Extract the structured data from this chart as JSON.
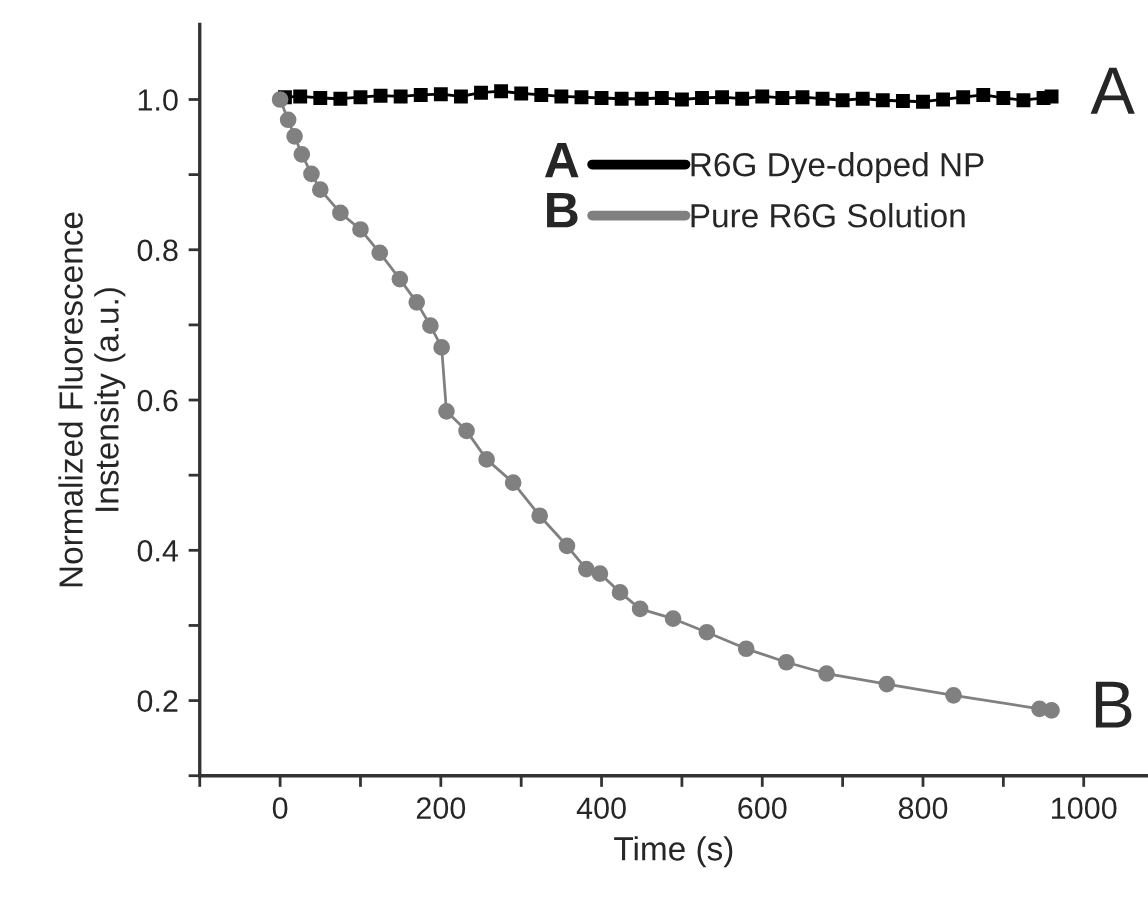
{
  "chart_data": {
    "type": "line",
    "xlabel": "Time (s)",
    "ylabel": "Normalized Fluorescence\nInstensity (a.u.)",
    "xlim": [
      -100,
      1080
    ],
    "ylim": [
      0.1,
      1.1
    ],
    "xticks": [
      {
        "value": -100,
        "label": null
      },
      0,
      {
        "value": 100,
        "label": null
      },
      200,
      {
        "value": 300,
        "label": null
      },
      400,
      {
        "value": 500,
        "label": null
      },
      600,
      {
        "value": 700,
        "label": null
      },
      800,
      {
        "value": 900,
        "label": null
      },
      1000
    ],
    "yticks": [
      {
        "value": 0.1,
        "label": null
      },
      0.2,
      {
        "value": 0.3,
        "label": null
      },
      0.4,
      {
        "value": 0.5,
        "label": null
      },
      0.6,
      {
        "value": 0.7,
        "label": null
      },
      0.8,
      {
        "value": 0.9,
        "label": null
      },
      {
        "value": 1.0,
        "label": "1.0"
      }
    ],
    "grid": false,
    "legend": "top right",
    "line_style": "solid",
    "series": [
      {
        "name": "R6G Dye-doped NP",
        "color": "#000000",
        "marker": "square",
        "x": [
          6,
          25,
          50,
          75,
          100,
          125,
          150,
          175,
          200,
          225,
          250,
          275,
          300,
          325,
          350,
          375,
          400,
          425,
          450,
          475,
          500,
          525,
          550,
          575,
          600,
          625,
          650,
          675,
          700,
          725,
          750,
          775,
          800,
          825,
          850,
          875,
          900,
          925,
          950,
          960
        ],
        "values": [
          1.003,
          1.004,
          1.002,
          1.001,
          1.003,
          1.005,
          1.004,
          1.006,
          1.007,
          1.004,
          1.009,
          1.011,
          1.008,
          1.006,
          1.004,
          1.003,
          1.002,
          1.001,
          1.001,
          1.002,
          1.0,
          1.002,
          1.003,
          1.001,
          1.004,
          1.002,
          1.003,
          1.001,
          0.999,
          1.001,
          0.999,
          0.998,
          0.997,
          1.0,
          1.003,
          1.006,
          1.002,
          0.999,
          1.002,
          1.004
        ]
      },
      {
        "name": "Pure R6G Solution",
        "color": "#808080",
        "marker": "circle",
        "x": [
          0,
          10,
          18,
          27,
          39,
          50,
          75,
          100,
          124,
          149,
          170,
          187,
          201,
          207,
          232,
          257,
          290,
          323,
          357,
          381,
          398,
          423,
          448,
          489,
          531,
          580,
          630,
          680,
          755,
          838,
          945,
          960
        ],
        "values": [
          1.0,
          0.973,
          0.951,
          0.927,
          0.901,
          0.88,
          0.849,
          0.827,
          0.796,
          0.761,
          0.73,
          0.699,
          0.67,
          0.585,
          0.559,
          0.521,
          0.49,
          0.446,
          0.406,
          0.375,
          0.369,
          0.344,
          0.322,
          0.309,
          0.291,
          0.269,
          0.251,
          0.236,
          0.222,
          0.207,
          0.189,
          0.187
        ]
      }
    ],
    "annotations": [
      {
        "text": "A",
        "x": 960,
        "y": 1.004
      },
      {
        "text": "B",
        "x": 960,
        "y": 0.187
      },
      "A",
      "B"
    ]
  }
}
